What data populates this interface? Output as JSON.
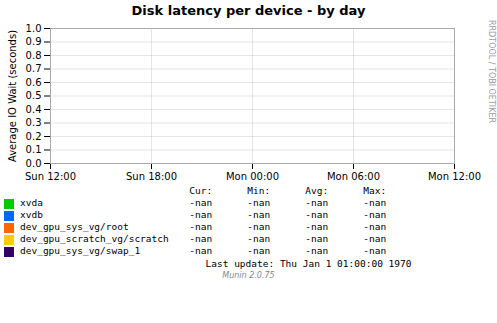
{
  "chart_data": {
    "type": "line",
    "title": "Disk latency per device - by day",
    "ylabel": "Average IO Wait (seconds)",
    "categories": [
      "Sun 12:00",
      "Sun 18:00",
      "Mon 00:00",
      "Mon 06:00",
      "Mon 12:00"
    ],
    "series": [
      {
        "name": "xvda",
        "color": "#00cc00",
        "values": [
          null,
          null,
          null,
          null,
          null
        ],
        "table_values": [
          "-nan",
          "-nan",
          "-nan",
          "-nan"
        ]
      },
      {
        "name": "xvdb",
        "color": "#0066ff",
        "values": [
          null,
          null,
          null,
          null,
          null
        ],
        "table_values": [
          "-nan",
          "-nan",
          "-nan",
          "-nan"
        ]
      },
      {
        "name": "dev_gpu_sys_vg/root",
        "color": "#ff6600",
        "values": [
          null,
          null,
          null,
          null,
          null
        ],
        "table_values": [
          "-nan",
          "-nan",
          "-nan",
          "-nan"
        ]
      },
      {
        "name": "dev_gpu_scratch_vg/scratch",
        "color": "#ffcc00",
        "values": [
          null,
          null,
          null,
          null,
          null
        ],
        "table_values": [
          "-nan",
          "-nan",
          "-nan",
          "-nan"
        ]
      },
      {
        "name": "dev_gpu_sys_vg/swap_1",
        "color": "#330066",
        "values": [
          null,
          null,
          null,
          null,
          null
        ],
        "table_values": [
          "-nan",
          "-nan",
          "-nan",
          "-nan"
        ]
      }
    ],
    "table_headers": [
      "Cur:",
      "Min:",
      "Avg:",
      "Max:"
    ],
    "ylim": [
      0.0,
      1.0
    ],
    "yticks": [
      {
        "value": 0.0,
        "label": "0.0"
      },
      0.1,
      0.2,
      0.3,
      0.4,
      0.5,
      0.6,
      0.7,
      0.8,
      0.9,
      {
        "value": 1.0,
        "label": "1.0"
      }
    ],
    "grid": true,
    "legend": "bottom",
    "last_update": "Last update: Thu Jan  1 01:00:00 1970",
    "footer": "Munin 2.0.75",
    "side_text": "RRDTOOL / TOBI OETIKER"
  }
}
